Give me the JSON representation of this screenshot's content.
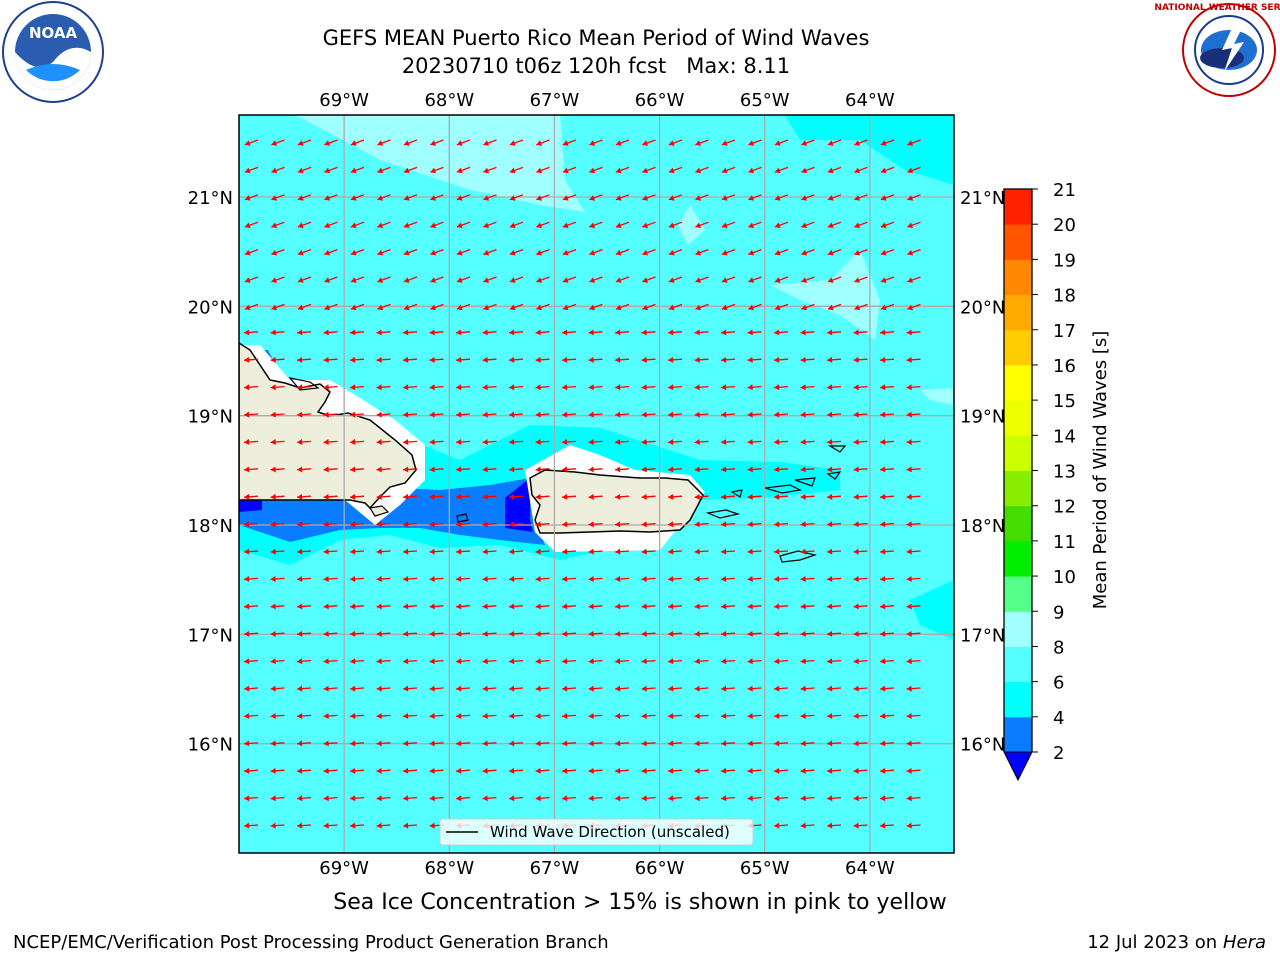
{
  "title": {
    "line1": "GEFS MEAN Puerto Rico Mean Period of Wind Waves",
    "line2": "20230710 t06z 120h fcst   Max: 8.11"
  },
  "logos": {
    "noaa_text": "NOAA",
    "noaa_ring": "NATIONAL OCEANIC AND ATMOSPHERIC ADMINISTRATION · U.S. DEPARTMENT OF COMMERCE",
    "nws_ring": "NATIONAL WEATHER SERVICE"
  },
  "map": {
    "lon_labels": [
      "69°W",
      "68°W",
      "67°W",
      "66°W",
      "65°W",
      "64°W"
    ],
    "lat_labels": [
      "21°N",
      "20°N",
      "19°N",
      "18°N",
      "17°N",
      "16°N"
    ],
    "lon_range": [
      -70.0,
      -63.2
    ],
    "lat_range": [
      15.0,
      21.75
    ],
    "ocean_color": "#55ffff",
    "land_color": "#eeeedd",
    "arrow_color": "#ff0000",
    "legend_label": "Wind Wave Direction (unscaled)"
  },
  "colorbar": {
    "label": "Mean Period of Wind Waves [s]",
    "ticks": [
      "2",
      "4",
      "6",
      "8",
      "9",
      "10",
      "11",
      "12",
      "13",
      "14",
      "15",
      "16",
      "17",
      "18",
      "19",
      "20",
      "21"
    ],
    "colors": [
      "#0a7cff",
      "#00ffff",
      "#55ffff",
      "#a0ffff",
      "#55ff88",
      "#00ee00",
      "#44dd00",
      "#88ee00",
      "#ccff00",
      "#eeff00",
      "#ffff00",
      "#ffcc00",
      "#ffaa00",
      "#ff8800",
      "#ff5500",
      "#ff2200"
    ],
    "under_color": "#0000ff"
  },
  "subcaption": "Sea Ice Concentration > 15% is shown in pink to yellow",
  "footer": {
    "left": "NCEP/EMC/Verification Post Processing Product Generation Branch",
    "right_date": "12 Jul 2023 on ",
    "right_host": "Hera"
  }
}
